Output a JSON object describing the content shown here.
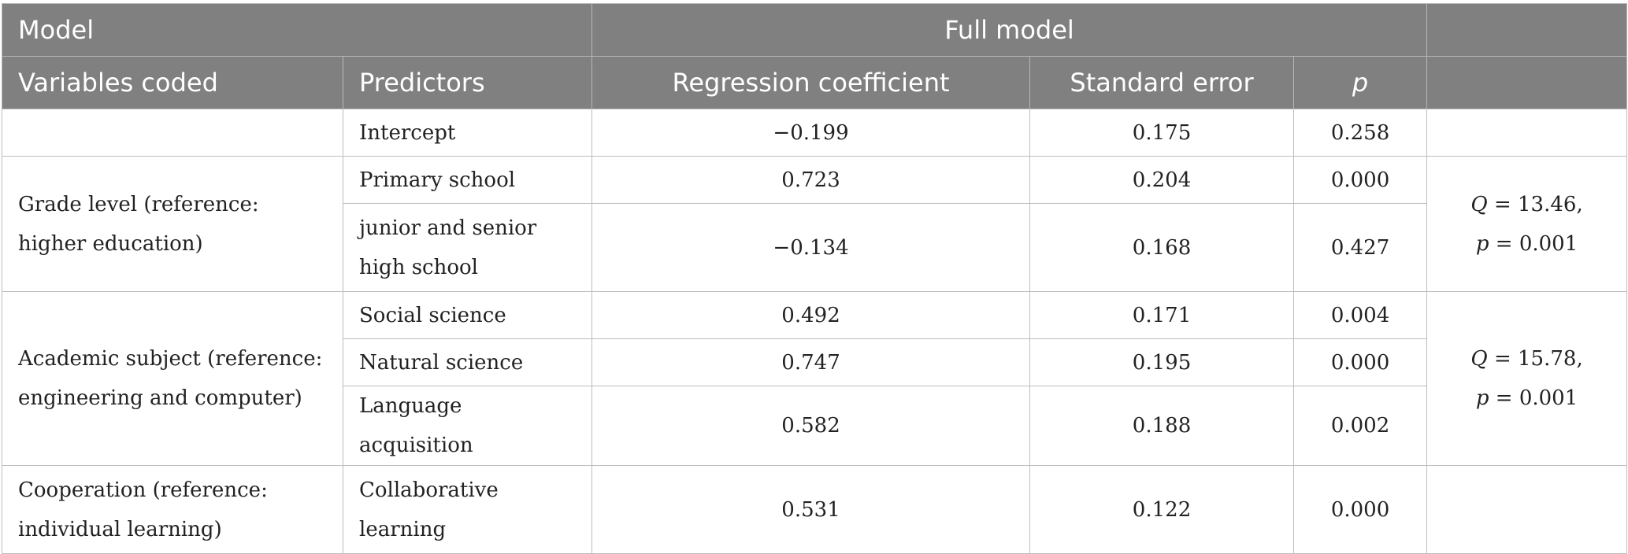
{
  "header": {
    "model_label": "Model",
    "full_model_label": "Full model",
    "columns": [
      "Variables coded",
      "Predictors",
      "Regression coefficient",
      "Standard error",
      "p"
    ]
  },
  "rows": {
    "intercept": {
      "predictor": "Intercept",
      "coef": "−0.199",
      "se": "0.175",
      "p": "0.258"
    },
    "grade": {
      "variable": "Grade level (reference: higher education)",
      "q_stat": {
        "q_label": "Q",
        "q_value": " = 13.46,",
        "p_label": "p",
        "p_value": " = 0.001"
      },
      "items": [
        {
          "predictor": "Primary school",
          "coef": "0.723",
          "se": "0.204",
          "p": "0.000"
        },
        {
          "predictor": "junior and senior high school",
          "coef": "−0.134",
          "se": "0.168",
          "p": "0.427"
        }
      ]
    },
    "subject": {
      "variable": "Academic subject (reference: engineering and computer)",
      "q_stat": {
        "q_label": "Q",
        "q_value": " = 15.78,",
        "p_label": "p",
        "p_value": " = 0.001"
      },
      "items": [
        {
          "predictor": "Social science",
          "coef": "0.492",
          "se": "0.171",
          "p": "0.004"
        },
        {
          "predictor": "Natural science",
          "coef": "0.747",
          "se": "0.195",
          "p": "0.000"
        },
        {
          "predictor": "Language acquisition",
          "coef": "0.582",
          "se": "0.188",
          "p": "0.002"
        }
      ]
    },
    "cooperation": {
      "variable": "Cooperation (reference: individual learning)",
      "items": [
        {
          "predictor": "Collaborative learning",
          "coef": "0.531",
          "se": "0.122",
          "p": "0.000"
        }
      ]
    }
  }
}
